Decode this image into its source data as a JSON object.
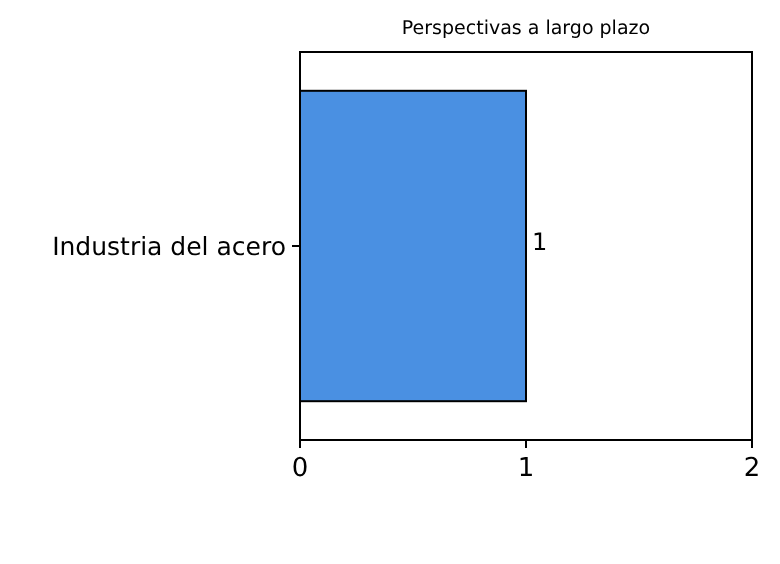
{
  "chart_data": {
    "type": "bar",
    "orientation": "horizontal",
    "title": "Perspectivas a largo plazo",
    "categories": [
      "Industria del acero"
    ],
    "values": [
      1
    ],
    "color": "#4a90e2",
    "xlim": [
      0,
      2
    ],
    "xticks": [
      0,
      1,
      2
    ],
    "data_labels": true
  }
}
